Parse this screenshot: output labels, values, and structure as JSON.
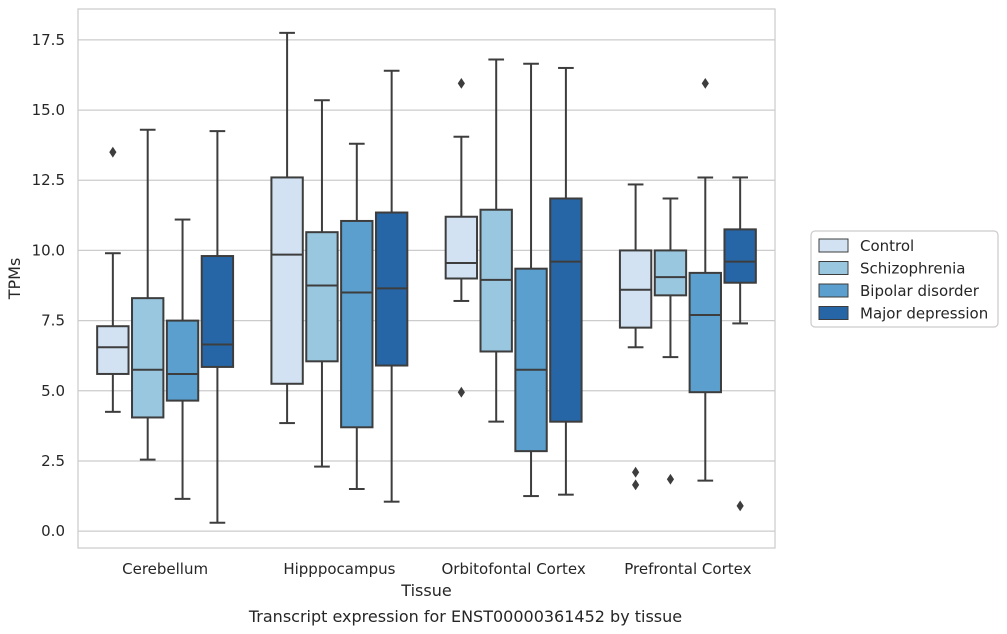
{
  "chart_data": {
    "type": "box",
    "title": "",
    "caption": "Transcript expression for ENST00000361452 by tissue",
    "xlabel": "Tissue",
    "ylabel": "TPMs",
    "ylim": [
      -0.6,
      18.6
    ],
    "yticks": [
      "0.0",
      "2.5",
      "5.0",
      "7.5",
      "10.0",
      "12.5",
      "15.0",
      "17.5"
    ],
    "ytick_values": [
      0,
      2.5,
      5,
      7.5,
      10,
      12.5,
      15,
      17.5
    ],
    "grid": true,
    "legend_position": "right",
    "categories": [
      "Cerebellum",
      "Hipppocampus",
      "Orbitofontal Cortex",
      "Prefrontal Cortex"
    ],
    "series": [
      {
        "name": "Control",
        "color": "#d2e2f2",
        "boxes": [
          {
            "whislo": 4.25,
            "q1": 5.6,
            "med": 6.55,
            "q3": 7.3,
            "whishi": 9.9,
            "fliers": [
              13.5
            ]
          },
          {
            "whislo": 3.85,
            "q1": 5.25,
            "med": 9.85,
            "q3": 12.6,
            "whishi": 17.75,
            "fliers": []
          },
          {
            "whislo": 8.2,
            "q1": 9.0,
            "med": 9.55,
            "q3": 11.2,
            "whishi": 14.05,
            "fliers": [
              15.95,
              4.95
            ]
          },
          {
            "whislo": 6.55,
            "q1": 7.25,
            "med": 8.6,
            "q3": 10.0,
            "whishi": 12.35,
            "fliers": [
              2.1,
              1.65
            ]
          }
        ]
      },
      {
        "name": "Schizophrenia",
        "color": "#9ac7e0",
        "boxes": [
          {
            "whislo": 2.55,
            "q1": 4.05,
            "med": 5.75,
            "q3": 8.3,
            "whishi": 14.3,
            "fliers": []
          },
          {
            "whislo": 2.3,
            "q1": 6.05,
            "med": 8.75,
            "q3": 10.65,
            "whishi": 15.35,
            "fliers": []
          },
          {
            "whislo": 3.9,
            "q1": 6.4,
            "med": 8.95,
            "q3": 11.45,
            "whishi": 16.8,
            "fliers": []
          },
          {
            "whislo": 6.2,
            "q1": 8.4,
            "med": 9.05,
            "q3": 10.0,
            "whishi": 11.85,
            "fliers": [
              1.85
            ]
          }
        ]
      },
      {
        "name": "Bipolar disorder",
        "color": "#5a9fcd",
        "boxes": [
          {
            "whislo": 1.15,
            "q1": 4.65,
            "med": 5.6,
            "q3": 7.5,
            "whishi": 11.1,
            "fliers": []
          },
          {
            "whislo": 1.5,
            "q1": 3.7,
            "med": 8.5,
            "q3": 11.05,
            "whishi": 13.8,
            "fliers": []
          },
          {
            "whislo": 1.25,
            "q1": 2.85,
            "med": 5.75,
            "q3": 9.35,
            "whishi": 16.65,
            "fliers": []
          },
          {
            "whislo": 1.8,
            "q1": 4.95,
            "med": 7.7,
            "q3": 9.2,
            "whishi": 12.6,
            "fliers": [
              15.95
            ]
          }
        ]
      },
      {
        "name": "Major depression",
        "color": "#2666a6",
        "boxes": [
          {
            "whislo": 0.3,
            "q1": 5.85,
            "med": 6.65,
            "q3": 9.8,
            "whishi": 14.25,
            "fliers": []
          },
          {
            "whislo": 1.05,
            "q1": 5.9,
            "med": 8.65,
            "q3": 11.35,
            "whishi": 16.4,
            "fliers": []
          },
          {
            "whislo": 1.3,
            "q1": 3.9,
            "med": 9.6,
            "q3": 11.85,
            "whishi": 16.5,
            "fliers": []
          },
          {
            "whislo": 7.4,
            "q1": 8.85,
            "med": 9.6,
            "q3": 10.75,
            "whishi": 12.6,
            "fliers": [
              0.9
            ]
          }
        ]
      }
    ]
  }
}
